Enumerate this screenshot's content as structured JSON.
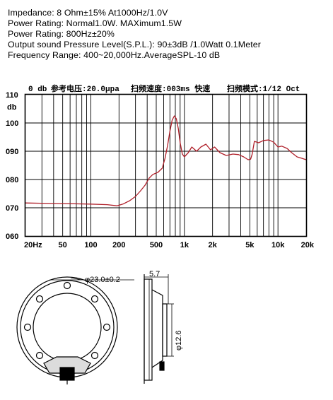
{
  "specs": [
    "Impedance: 8 Ohm±15%  At1000Hz/1.0V",
    "Power Rating: Normal1.0W. MAXimum1.5W",
    "Power Rating: 800Hz±20%",
    "Output sound Pressure Level(S.P.L.): 90±3dB /1.0Watt 0.1Meter",
    "Frequency Range: 400~20,000Hz.AverageSPL-10 dB"
  ],
  "chart_data": {
    "type": "line",
    "header": {
      "left": "0 db",
      "center_1": "参考电压:20.0μpa",
      "center_2": "扫频速度:003ms  快速",
      "right": "扫频模式:1/12  Oct"
    },
    "ylabel": "db",
    "xscale": "log",
    "xlim": [
      20,
      20000
    ],
    "ylim": [
      60,
      110
    ],
    "grid": true,
    "x_ticks": [
      {
        "value": 20,
        "label": "20Hz"
      },
      {
        "value": 50,
        "label": "50"
      },
      {
        "value": 100,
        "label": "100"
      },
      {
        "value": 200,
        "label": "200"
      },
      {
        "value": 500,
        "label": "500"
      },
      {
        "value": 1000,
        "label": "1k"
      },
      {
        "value": 2000,
        "label": "2k"
      },
      {
        "value": 5000,
        "label": "5k"
      },
      {
        "value": 10000,
        "label": "10k"
      },
      {
        "value": 20000,
        "label": "20k"
      }
    ],
    "y_ticks": [
      {
        "value": 110,
        "label": "110"
      },
      {
        "value": 100,
        "label": "100"
      },
      {
        "value": 90,
        "label": "090"
      },
      {
        "value": 80,
        "label": "080"
      },
      {
        "value": 70,
        "label": "070"
      },
      {
        "value": 60,
        "label": "060"
      }
    ],
    "series": [
      {
        "color": "#b0202a",
        "points": [
          [
            20,
            71.7
          ],
          [
            30,
            71.6
          ],
          [
            50,
            71.5
          ],
          [
            100,
            71.3
          ],
          [
            150,
            71.1
          ],
          [
            190,
            70.7
          ],
          [
            220,
            71.3
          ],
          [
            260,
            72.5
          ],
          [
            300,
            74.0
          ],
          [
            340,
            76.0
          ],
          [
            380,
            78.0
          ],
          [
            420,
            80.5
          ],
          [
            460,
            81.8
          ],
          [
            520,
            82.5
          ],
          [
            580,
            84.0
          ],
          [
            620,
            87.5
          ],
          [
            660,
            92.0
          ],
          [
            700,
            97.0
          ],
          [
            740,
            101.0
          ],
          [
            780,
            102.5
          ],
          [
            820,
            101.5
          ],
          [
            860,
            98.0
          ],
          [
            900,
            93.0
          ],
          [
            950,
            89.0
          ],
          [
            1000,
            88.0
          ],
          [
            1100,
            89.5
          ],
          [
            1200,
            91.5
          ],
          [
            1350,
            90.0
          ],
          [
            1500,
            91.5
          ],
          [
            1700,
            92.5
          ],
          [
            1900,
            90.5
          ],
          [
            2100,
            91.5
          ],
          [
            2400,
            89.5
          ],
          [
            2800,
            88.5
          ],
          [
            3300,
            89.0
          ],
          [
            3800,
            88.8
          ],
          [
            4300,
            88.0
          ],
          [
            4800,
            87.0
          ],
          [
            5100,
            87.2
          ],
          [
            5300,
            89.0
          ],
          [
            5600,
            93.5
          ],
          [
            6200,
            93.0
          ],
          [
            7000,
            93.8
          ],
          [
            8000,
            94.0
          ],
          [
            9000,
            93.2
          ],
          [
            10000,
            91.5
          ],
          [
            11000,
            91.8
          ],
          [
            12500,
            91.0
          ],
          [
            14000,
            89.5
          ],
          [
            16000,
            88.0
          ],
          [
            18000,
            87.5
          ],
          [
            20000,
            87.0
          ]
        ]
      }
    ]
  },
  "drawing": {
    "diameter_label": "φ23.0±0.2",
    "depth_label": "5.7",
    "magnet_label": "φ12.6"
  },
  "colors": {
    "curve": "#b0202a",
    "grid": "#000000",
    "frame": "#000000"
  }
}
